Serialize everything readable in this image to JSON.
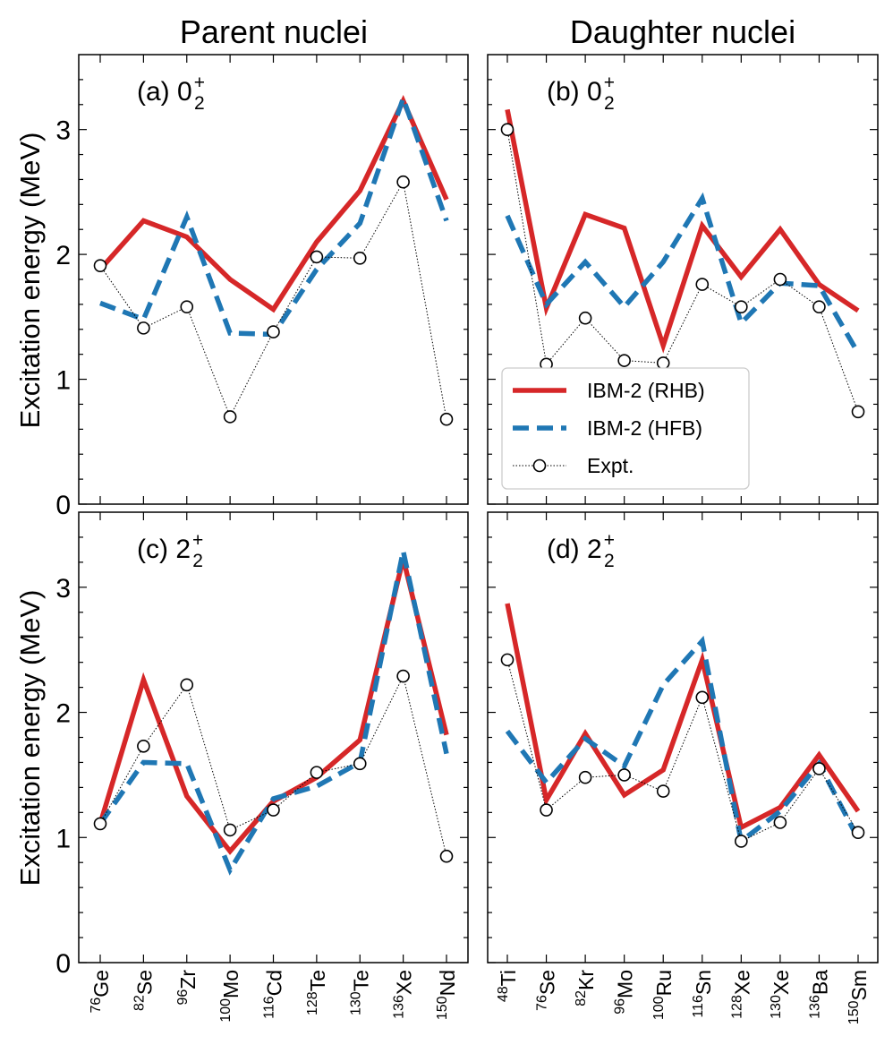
{
  "column_titles": [
    "Parent nuclei",
    "Daughter nuclei"
  ],
  "ylabel": "Excitation energy (MeV)",
  "yticks": [
    "0",
    "1",
    "2",
    "3"
  ],
  "colors": {
    "rhb": "#d62728",
    "hfb": "#1f77b4",
    "expt": "#000000"
  },
  "legend": {
    "entries": [
      "IBM-2 (RHB)",
      "IBM-2 (HFB)",
      "Expt."
    ],
    "placement": "inside panel (b), lower-left"
  },
  "chart_data": [
    {
      "type": "line",
      "panel": "(a)",
      "label": {
        "prefix": "(a) 0",
        "sub": "2",
        "sup": "+"
      },
      "categories": [
        {
          "sup": "76",
          "el": "Ge"
        },
        {
          "sup": "82",
          "el": "Se"
        },
        {
          "sup": "96",
          "el": "Zr"
        },
        {
          "sup": "100",
          "el": "Mo"
        },
        {
          "sup": "116",
          "el": "Cd"
        },
        {
          "sup": "128",
          "el": "Te"
        },
        {
          "sup": "130",
          "el": "Te"
        },
        {
          "sup": "136",
          "el": "Xe"
        },
        {
          "sup": "150",
          "el": "Nd"
        }
      ],
      "ylim": [
        0,
        3.6
      ],
      "series": [
        {
          "name": "IBM-2 (RHB)",
          "values": [
            1.88,
            2.27,
            2.14,
            1.8,
            1.56,
            2.1,
            2.51,
            3.23,
            2.44
          ]
        },
        {
          "name": "IBM-2 (HFB)",
          "values": [
            1.61,
            1.48,
            2.3,
            1.37,
            1.36,
            1.88,
            2.25,
            3.25,
            2.27
          ]
        },
        {
          "name": "Expt.",
          "values": [
            1.91,
            1.41,
            1.58,
            0.7,
            1.38,
            1.98,
            1.97,
            2.58,
            0.68
          ]
        }
      ]
    },
    {
      "type": "line",
      "panel": "(b)",
      "label": {
        "prefix": "(b) 0",
        "sub": "2",
        "sup": "+"
      },
      "categories": [
        {
          "sup": "48",
          "el": "Ti"
        },
        {
          "sup": "76",
          "el": "Se"
        },
        {
          "sup": "82",
          "el": "Kr"
        },
        {
          "sup": "96",
          "el": "Mo"
        },
        {
          "sup": "100",
          "el": "Ru"
        },
        {
          "sup": "116",
          "el": "Sn"
        },
        {
          "sup": "128",
          "el": "Xe"
        },
        {
          "sup": "130",
          "el": "Xe"
        },
        {
          "sup": "136",
          "el": "Ba"
        },
        {
          "sup": "150",
          "el": "Sm"
        }
      ],
      "ylim": [
        0,
        3.6
      ],
      "series": [
        {
          "name": "IBM-2 (RHB)",
          "values": [
            3.16,
            1.57,
            2.32,
            2.21,
            1.27,
            2.23,
            1.82,
            2.2,
            1.76,
            1.55
          ]
        },
        {
          "name": "IBM-2 (HFB)",
          "values": [
            2.31,
            1.6,
            1.94,
            1.58,
            1.94,
            2.45,
            1.45,
            1.77,
            1.75,
            1.21
          ]
        },
        {
          "name": "Expt.",
          "values": [
            3.0,
            1.12,
            1.49,
            1.15,
            1.13,
            1.76,
            1.58,
            1.8,
            1.58,
            0.74
          ]
        }
      ]
    },
    {
      "type": "line",
      "panel": "(c)",
      "label": {
        "prefix": "(c) 2",
        "sub": "2",
        "sup": "+"
      },
      "categories": [
        {
          "sup": "76",
          "el": "Ge"
        },
        {
          "sup": "82",
          "el": "Se"
        },
        {
          "sup": "96",
          "el": "Zr"
        },
        {
          "sup": "100",
          "el": "Mo"
        },
        {
          "sup": "116",
          "el": "Cd"
        },
        {
          "sup": "128",
          "el": "Te"
        },
        {
          "sup": "130",
          "el": "Te"
        },
        {
          "sup": "136",
          "el": "Xe"
        },
        {
          "sup": "150",
          "el": "Nd"
        }
      ],
      "ylim": [
        0,
        3.6
      ],
      "series": [
        {
          "name": "IBM-2 (RHB)",
          "values": [
            1.11,
            2.26,
            1.33,
            0.89,
            1.29,
            1.48,
            1.78,
            3.23,
            1.82
          ]
        },
        {
          "name": "IBM-2 (HFB)",
          "values": [
            1.11,
            1.6,
            1.59,
            0.74,
            1.31,
            1.41,
            1.6,
            3.29,
            1.67
          ]
        },
        {
          "name": "Expt.",
          "values": [
            1.11,
            1.73,
            2.22,
            1.06,
            1.22,
            1.52,
            1.59,
            2.29,
            0.85
          ]
        }
      ]
    },
    {
      "type": "line",
      "panel": "(d)",
      "label": {
        "prefix": "(d) 2",
        "sub": "2",
        "sup": "+"
      },
      "categories": [
        {
          "sup": "48",
          "el": "Ti"
        },
        {
          "sup": "76",
          "el": "Se"
        },
        {
          "sup": "82",
          "el": "Kr"
        },
        {
          "sup": "96",
          "el": "Mo"
        },
        {
          "sup": "100",
          "el": "Ru"
        },
        {
          "sup": "116",
          "el": "Sn"
        },
        {
          "sup": "128",
          "el": "Xe"
        },
        {
          "sup": "130",
          "el": "Xe"
        },
        {
          "sup": "136",
          "el": "Ba"
        },
        {
          "sup": "150",
          "el": "Sm"
        }
      ],
      "ylim": [
        0,
        3.6
      ],
      "series": [
        {
          "name": "IBM-2 (RHB)",
          "values": [
            2.87,
            1.3,
            1.83,
            1.34,
            1.54,
            2.42,
            1.08,
            1.24,
            1.66,
            1.21
          ]
        },
        {
          "name": "IBM-2 (HFB)",
          "values": [
            1.85,
            1.44,
            1.79,
            1.57,
            2.22,
            2.57,
            0.97,
            1.21,
            1.59,
            0.99
          ]
        },
        {
          "name": "Expt.",
          "values": [
            2.42,
            1.22,
            1.48,
            1.5,
            1.37,
            2.12,
            0.97,
            1.12,
            1.55,
            1.04
          ]
        }
      ]
    }
  ]
}
